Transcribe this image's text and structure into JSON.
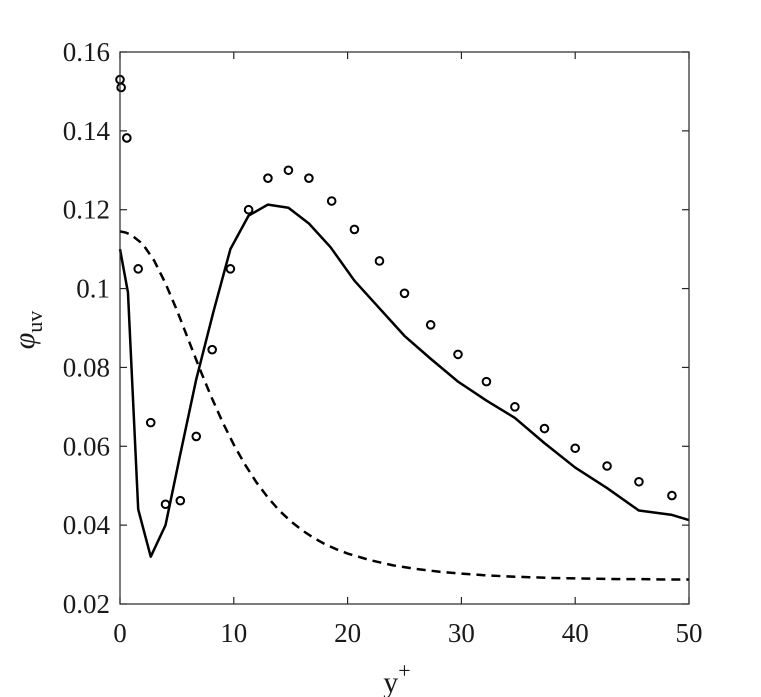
{
  "chart_data": {
    "type": "line",
    "xlabel": {
      "base": "y",
      "sup": "+"
    },
    "ylabel": {
      "base": "φ",
      "sub": "uv"
    },
    "xlim": [
      0,
      50
    ],
    "ylim": [
      0.02,
      0.16
    ],
    "xticks": [
      0,
      10,
      20,
      30,
      40,
      50
    ],
    "xtick_labels": [
      "0",
      "10",
      "20",
      "30",
      "40",
      "50"
    ],
    "yticks": [
      0.02,
      0.04,
      0.06,
      0.08,
      0.1,
      0.12,
      0.14,
      0.16
    ],
    "ytick_labels": [
      "0.02",
      "0.04",
      "0.06",
      "0.08",
      "0.1",
      "0.12",
      "0.14",
      "0.16"
    ],
    "grid": false,
    "legend": "none",
    "series": [
      {
        "style": "solid",
        "color": "#000000",
        "x": [
          0,
          0.7,
          1.6,
          2.7,
          4.0,
          5.3,
          6.7,
          8.2,
          9.7,
          11.3,
          13.0,
          14.8,
          16.6,
          18.5,
          20.6,
          22.8,
          25.0,
          27.3,
          29.7,
          32.2,
          34.7,
          37.3,
          40.0,
          42.8,
          45.6,
          48.5,
          50.0
        ],
        "y": [
          0.11,
          0.099,
          0.044,
          0.032,
          0.04,
          0.058,
          0.077,
          0.094,
          0.11,
          0.1185,
          0.1213,
          0.1205,
          0.1165,
          0.1105,
          0.102,
          0.095,
          0.088,
          0.0822,
          0.0764,
          0.0716,
          0.0672,
          0.0608,
          0.0546,
          0.0494,
          0.0437,
          0.0426,
          0.0413
        ]
      },
      {
        "style": "dashed",
        "color": "#000000",
        "x": [
          0,
          0.5,
          1,
          2,
          3,
          4,
          5,
          6,
          7,
          8,
          9,
          10,
          11,
          12,
          13,
          14,
          15,
          16,
          17,
          18,
          19,
          20,
          22,
          24,
          26,
          28,
          30,
          32,
          34,
          36,
          38,
          40,
          42,
          44,
          46,
          48,
          50
        ],
        "y": [
          0.1145,
          0.1142,
          0.1136,
          0.1113,
          0.1071,
          0.1013,
          0.0945,
          0.0871,
          0.0797,
          0.0727,
          0.0662,
          0.0604,
          0.0553,
          0.0508,
          0.047,
          0.0437,
          0.041,
          0.0387,
          0.0368,
          0.0352,
          0.0339,
          0.0328,
          0.0311,
          0.0298,
          0.0289,
          0.0282,
          0.0277,
          0.0273,
          0.027,
          0.0268,
          0.0266,
          0.0265,
          0.0264,
          0.0263,
          0.0263,
          0.0262,
          0.0262
        ]
      },
      {
        "style": "circle-markers",
        "color": "#000000",
        "x": [
          0.0,
          0.1,
          0.6,
          1.6,
          2.7,
          4.0,
          5.3,
          6.7,
          8.1,
          9.7,
          11.3,
          13.0,
          14.8,
          16.6,
          18.6,
          20.6,
          22.8,
          25.0,
          27.3,
          29.7,
          32.2,
          34.7,
          37.3,
          40.0,
          42.8,
          45.6,
          48.5
        ],
        "y": [
          0.153,
          0.151,
          0.1382,
          0.105,
          0.066,
          0.0453,
          0.0462,
          0.0625,
          0.0845,
          0.105,
          0.12,
          0.128,
          0.13,
          0.128,
          0.1222,
          0.115,
          0.107,
          0.0988,
          0.0908,
          0.0833,
          0.0764,
          0.07,
          0.0645,
          0.0595,
          0.055,
          0.051,
          0.0475
        ]
      }
    ]
  }
}
